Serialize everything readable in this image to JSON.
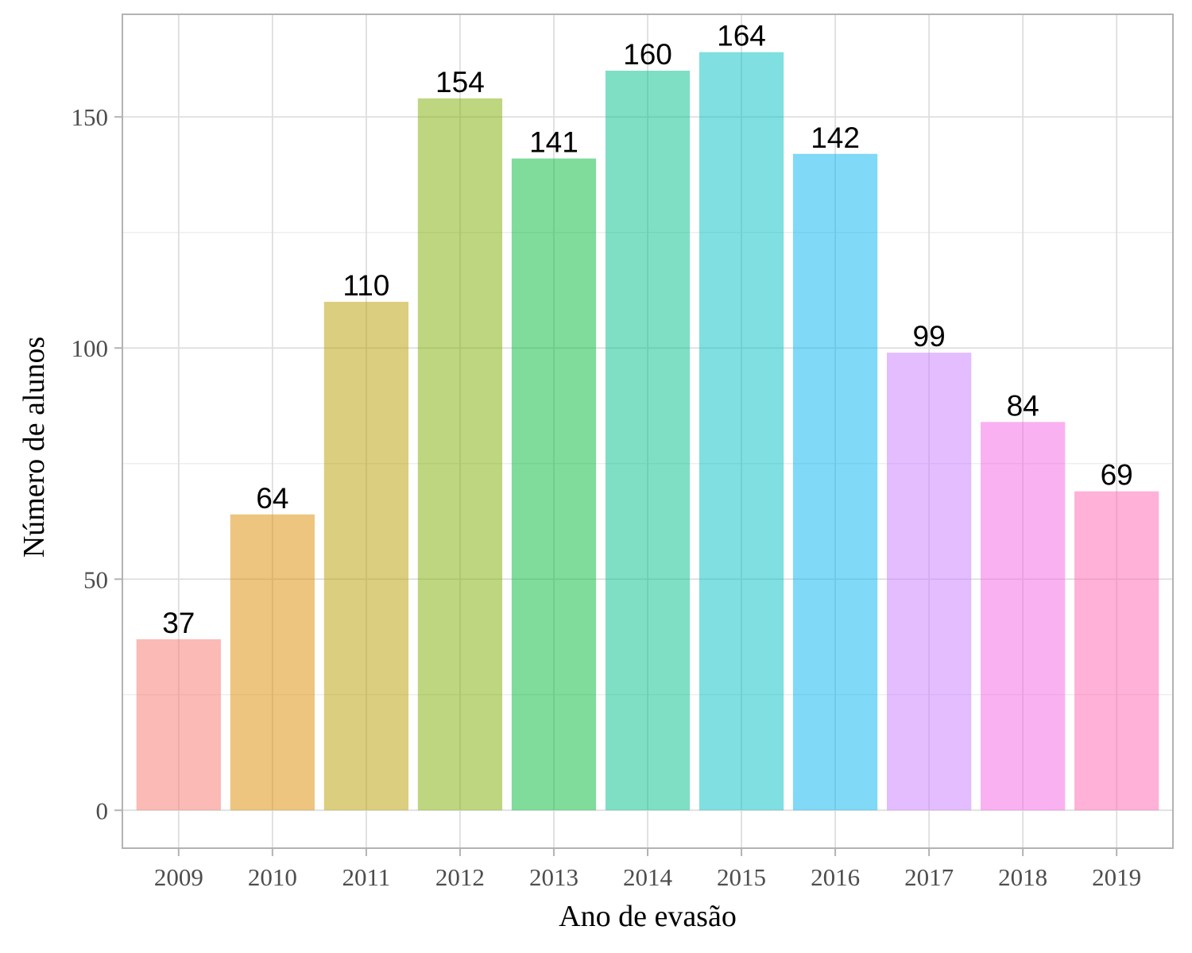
{
  "chart_data": {
    "type": "bar",
    "title": "",
    "xlabel": "Ano de evasão",
    "ylabel": "Número de alunos",
    "categories": [
      "2009",
      "2010",
      "2011",
      "2012",
      "2013",
      "2014",
      "2015",
      "2016",
      "2017",
      "2018",
      "2019"
    ],
    "values": [
      37,
      64,
      110,
      154,
      141,
      160,
      164,
      142,
      99,
      84,
      69
    ],
    "data_labels": [
      "37",
      "64",
      "110",
      "154",
      "141",
      "160",
      "164",
      "142",
      "99",
      "84",
      "69"
    ],
    "colors": [
      "#f8766d",
      "#de8c00",
      "#b79f00",
      "#7cae00",
      "#00ba38",
      "#00c08b",
      "#00bfc4",
      "#00b4f0",
      "#c77cff",
      "#f564e3",
      "#ff64b0"
    ],
    "bar_opacity": 0.5,
    "ylim": [
      -8.2,
      172.2
    ],
    "yticks": [
      0,
      50,
      100,
      150
    ],
    "ytick_labels": [
      "0",
      "50",
      "100",
      "150"
    ],
    "grid": true,
    "legend": "none"
  }
}
